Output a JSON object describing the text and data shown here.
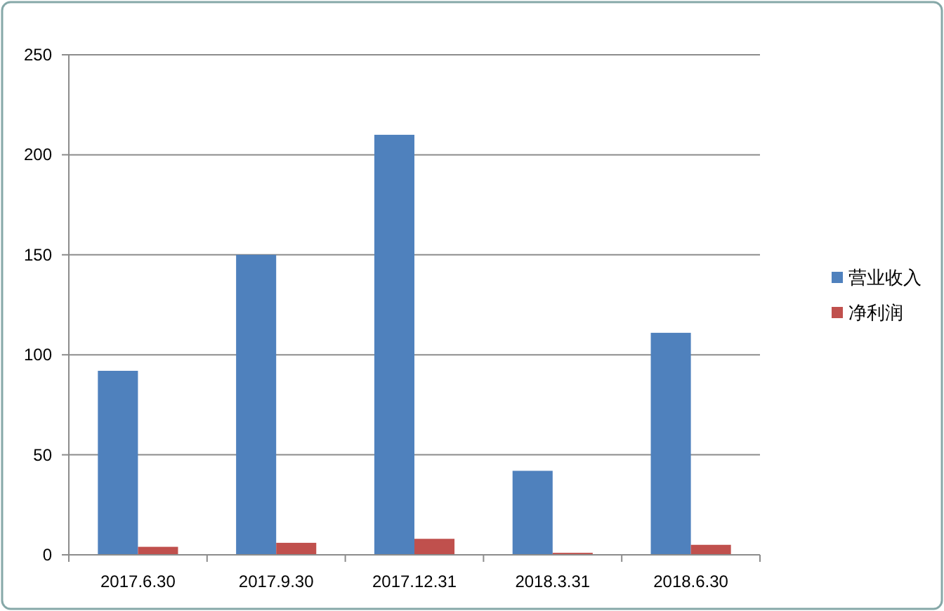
{
  "chart_data": {
    "type": "bar",
    "categories": [
      "2017.6.30",
      "2017.9.30",
      "2017.12.31",
      "2018.3.31",
      "2018.6.30"
    ],
    "series": [
      {
        "name": "营业收入",
        "color": "#4f81bd",
        "values": [
          92,
          150,
          210,
          42,
          111
        ]
      },
      {
        "name": "净利润",
        "color": "#c0504d",
        "values": [
          4,
          6,
          8,
          1,
          5
        ]
      }
    ],
    "ylim": [
      0,
      250
    ],
    "yticks": [
      0,
      50,
      100,
      150,
      200,
      250
    ],
    "grid": "y",
    "legend": "right"
  }
}
